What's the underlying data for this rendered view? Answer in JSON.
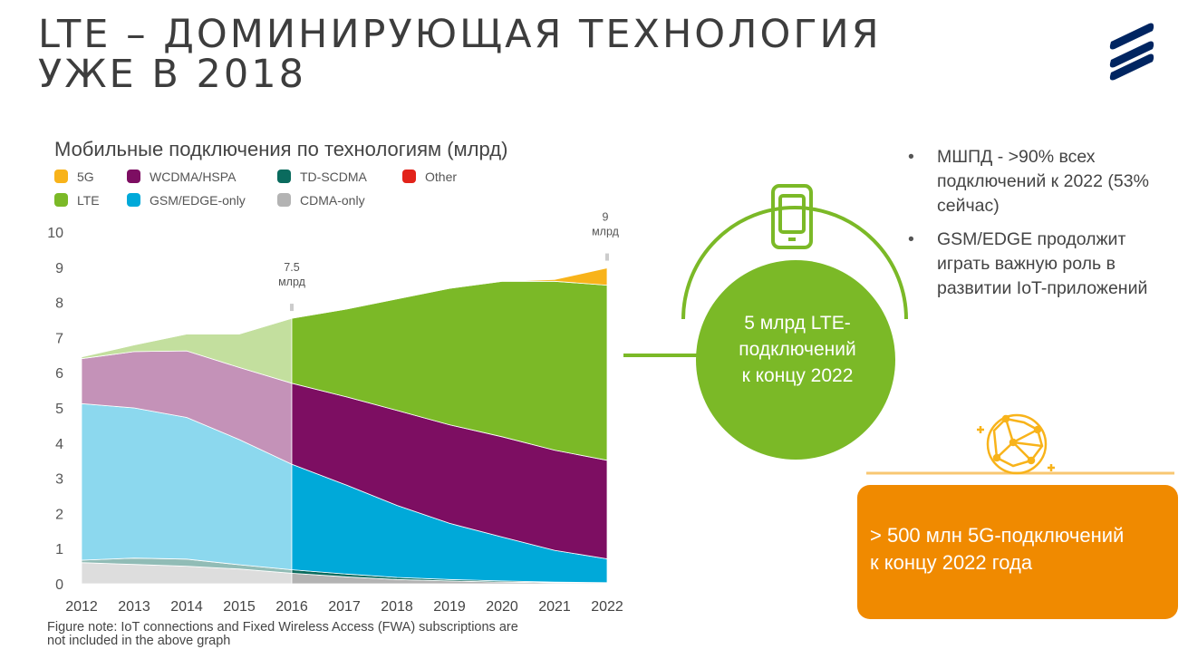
{
  "slide": {
    "title_line1": "LTE – ДОМИНИРУЮЩАЯ ТЕХНОЛОГИЯ",
    "title_line2": "УЖЕ В 2018",
    "logo_icon": "ericsson-logo-icon"
  },
  "chart_data": {
    "type": "area",
    "title": "Мобильные подключения по технологиям (млрд)",
    "x": [
      "2012",
      "2013",
      "2014",
      "2015",
      "2016",
      "2017",
      "2018",
      "2019",
      "2020",
      "2021",
      "2022"
    ],
    "ylim": [
      0,
      10
    ],
    "yticks": [
      "0",
      "1",
      "2",
      "3",
      "4",
      "5",
      "6",
      "7",
      "8",
      "9",
      "10"
    ],
    "stack_order": [
      "CDMA-only",
      "TD-SCDMA",
      "GSM/EDGE-only",
      "WCDMA/HSPA",
      "LTE",
      "5G",
      "Other"
    ],
    "series": [
      {
        "name": "CDMA-only",
        "color": "#b3b3b3",
        "values": [
          0.6,
          0.55,
          0.5,
          0.42,
          0.3,
          0.2,
          0.12,
          0.08,
          0.05,
          0.03,
          0.02
        ]
      },
      {
        "name": "TD-SCDMA",
        "color": "#0a6b5e",
        "values": [
          0.07,
          0.18,
          0.2,
          0.12,
          0.1,
          0.08,
          0.06,
          0.04,
          0.03,
          0.02,
          0.01
        ]
      },
      {
        "name": "GSM/EDGE-only",
        "color": "#00a9d9",
        "values": [
          4.45,
          4.27,
          4.03,
          3.56,
          3.0,
          2.55,
          2.05,
          1.6,
          1.25,
          0.9,
          0.68
        ]
      },
      {
        "name": "WCDMA/HSPA",
        "color": "#7d0e62",
        "values": [
          1.28,
          1.6,
          1.89,
          2.05,
          2.3,
          2.5,
          2.7,
          2.8,
          2.85,
          2.85,
          2.8
        ]
      },
      {
        "name": "LTE",
        "color": "#7bb927",
        "values": [
          0.05,
          0.19,
          0.48,
          0.95,
          1.85,
          2.47,
          3.17,
          3.88,
          4.42,
          4.8,
          4.98
        ]
      },
      {
        "name": "5G",
        "color": "#f8b31a",
        "values": [
          0,
          0,
          0,
          0,
          0,
          0,
          0,
          0,
          0,
          0.05,
          0.49
        ]
      },
      {
        "name": "Other",
        "color": "#e2231a",
        "values": [
          0,
          0,
          0,
          0,
          0,
          0,
          0,
          0,
          0,
          0,
          0
        ]
      }
    ],
    "annotations": [
      {
        "x": "2016",
        "label_line1": "7.5",
        "label_line2": "млрд"
      },
      {
        "x": "2022",
        "label_line1": "9",
        "label_line2": "млрд"
      }
    ],
    "legend_placement": "top",
    "grid": false
  },
  "legend": [
    {
      "label": "5G",
      "color": "#f8b31a"
    },
    {
      "label": "WCDMA/HSPA",
      "color": "#7d0e62"
    },
    {
      "label": "TD-SCDMA",
      "color": "#0a6b5e"
    },
    {
      "label": "Other",
      "color": "#e2231a"
    },
    {
      "label": "LTE",
      "color": "#7bb927"
    },
    {
      "label": "GSM/EDGE-only",
      "color": "#00a9d9"
    },
    {
      "label": "CDMA-only",
      "color": "#b3b3b3"
    }
  ],
  "note_line1": "Figure note: IoT connections and Fixed Wireless Access (FWA) subscriptions are",
  "note_line2": "not included in the above graph",
  "bullets": [
    "МШПД - >90% всех подключений к 2022 (53% сейчас)",
    "GSM/EDGE продолжит играть важную роль в развитии IoT-приложений"
  ],
  "lte_callout": {
    "line1": "5 млрд LTE-",
    "line2": "подключений",
    "line3": "к концу 2022",
    "icon": "smartphone-icon",
    "color": "#7bb927"
  },
  "g5_callout": {
    "line1": "> 500 млн 5G-подключений",
    "line2": "к концу 2022 года",
    "icon": "globe-network-icon",
    "color": "#f08a00"
  }
}
